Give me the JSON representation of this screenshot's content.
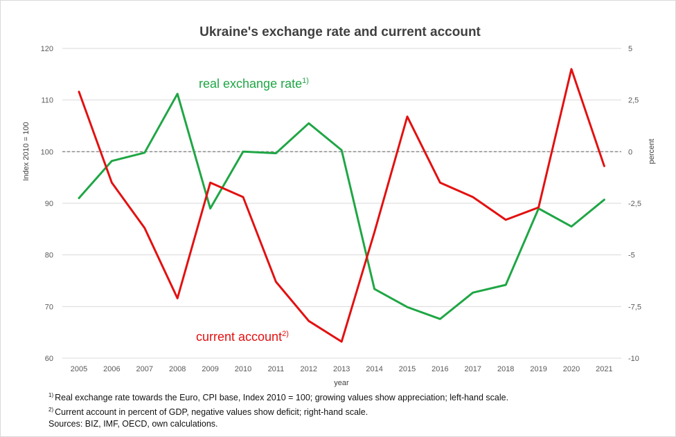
{
  "chart_data": {
    "type": "line",
    "title": "Ukraine's exchange rate and current account",
    "xlabel": "year",
    "ylabel_left": "Index 2010 = 100",
    "ylabel_right": "percent",
    "categories": [
      "2005",
      "2006",
      "2007",
      "2008",
      "2009",
      "2010",
      "2011",
      "2012",
      "2013",
      "2014",
      "2015",
      "2016",
      "2017",
      "2018",
      "2019",
      "2020",
      "2021"
    ],
    "y_left": {
      "ylim": [
        60,
        120
      ],
      "ticks": [
        "60",
        "70",
        "80",
        "90",
        "100",
        "110",
        "120"
      ]
    },
    "y_right": {
      "ylim": [
        -10,
        5
      ],
      "ticks": [
        "-10",
        "-7,5",
        "-5",
        "-2,5",
        "0",
        "2,5",
        "5"
      ]
    },
    "reference_line": {
      "value": 0,
      "axis": "right",
      "style": "dashed",
      "color": "#8c8c8c"
    },
    "grid": true,
    "series": [
      {
        "name": "real exchange rate",
        "name_sup": "1)",
        "axis": "left",
        "color": "#1fa645",
        "values": [
          91.0,
          98.2,
          99.8,
          111.2,
          89.0,
          100.0,
          99.7,
          105.5,
          100.3,
          73.4,
          69.9,
          67.6,
          72.7,
          74.2,
          89.0,
          85.5,
          90.7
        ]
      },
      {
        "name": "current account",
        "name_sup": "2)",
        "axis": "right",
        "color": "#e31010",
        "values": [
          2.9,
          -1.5,
          -3.7,
          -7.1,
          -1.5,
          -2.2,
          -6.3,
          -8.2,
          -9.2,
          -3.9,
          1.7,
          -1.5,
          -2.2,
          -3.3,
          -2.7,
          4.0,
          -0.7
        ]
      }
    ]
  },
  "footnotes": [
    {
      "sup": "1)",
      "text": "Real exchange rate towards the Euro, CPI base, Index 2010 = 100; growing values show appreciation; left-hand scale."
    },
    {
      "sup": "2)",
      "text": "Current account in percent of GDP, negative values show deficit; right-hand scale."
    },
    {
      "sup": "",
      "text": "Sources: BIZ, IMF, OECD, own calculations."
    }
  ]
}
